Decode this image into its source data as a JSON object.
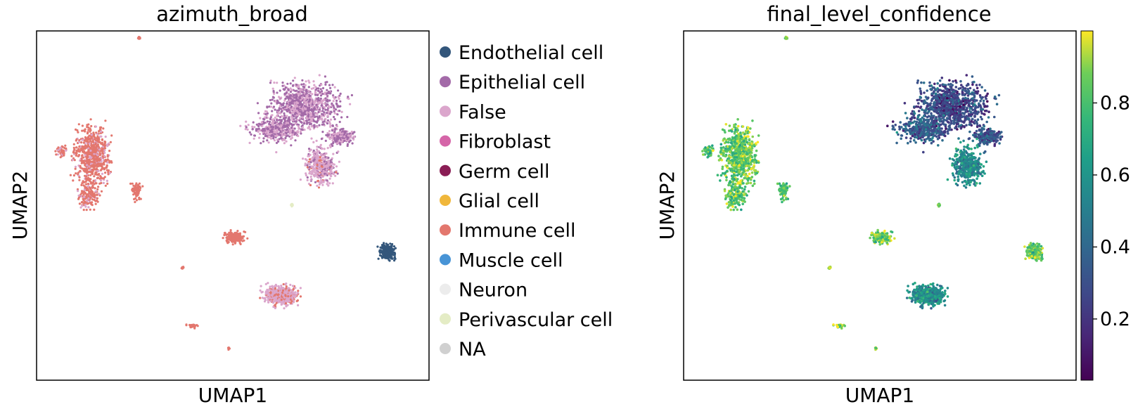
{
  "chart_data": [
    {
      "type": "scatter",
      "title": "azimuth_broad",
      "xlabel": "UMAP1",
      "ylabel": "UMAP2",
      "legend_position": "right",
      "ticks": "none",
      "categories": [
        {
          "name": "Endothelial cell",
          "color": "#33567b"
        },
        {
          "name": "Epithelial cell",
          "color": "#a36aa8"
        },
        {
          "name": "False",
          "color": "#dba6cc"
        },
        {
          "name": "Fibroblast",
          "color": "#d565a8"
        },
        {
          "name": "Germ cell",
          "color": "#8a1d55"
        },
        {
          "name": "Glial cell",
          "color": "#f0b73b"
        },
        {
          "name": "Immune cell",
          "color": "#e3776e"
        },
        {
          "name": "Muscle cell",
          "color": "#4894d6"
        },
        {
          "name": "Neuron",
          "color": "#ececec"
        },
        {
          "name": "Perivascular cell",
          "color": "#e4ecc5"
        },
        {
          "name": "NA",
          "color": "#d0d0d0"
        }
      ],
      "clusters": [
        {
          "category": "Immune cell",
          "x": 0.08,
          "y": 0.22
        },
        {
          "category": "Epithelial cell",
          "x": 0.7,
          "y": 0.82
        },
        {
          "category": "False",
          "x": 0.72,
          "y": 0.68
        },
        {
          "category": "Immune cell",
          "x": 0.52,
          "y": 0.02
        },
        {
          "category": "False",
          "x": 0.6,
          "y": -0.32
        },
        {
          "category": "Endothelial cell",
          "x": 0.9,
          "y": -0.1
        }
      ]
    },
    {
      "type": "scatter",
      "title": "final_level_confidence",
      "xlabel": "UMAP1",
      "ylabel": "UMAP2",
      "ticks": "none",
      "colorbar": {
        "colormap": "viridis",
        "range": [
          0.03,
          1.0
        ],
        "ticks": [
          "0.2",
          "0.4",
          "0.6",
          "0.8"
        ],
        "tick_values": [
          0.2,
          0.4,
          0.6,
          0.8
        ]
      }
    }
  ]
}
